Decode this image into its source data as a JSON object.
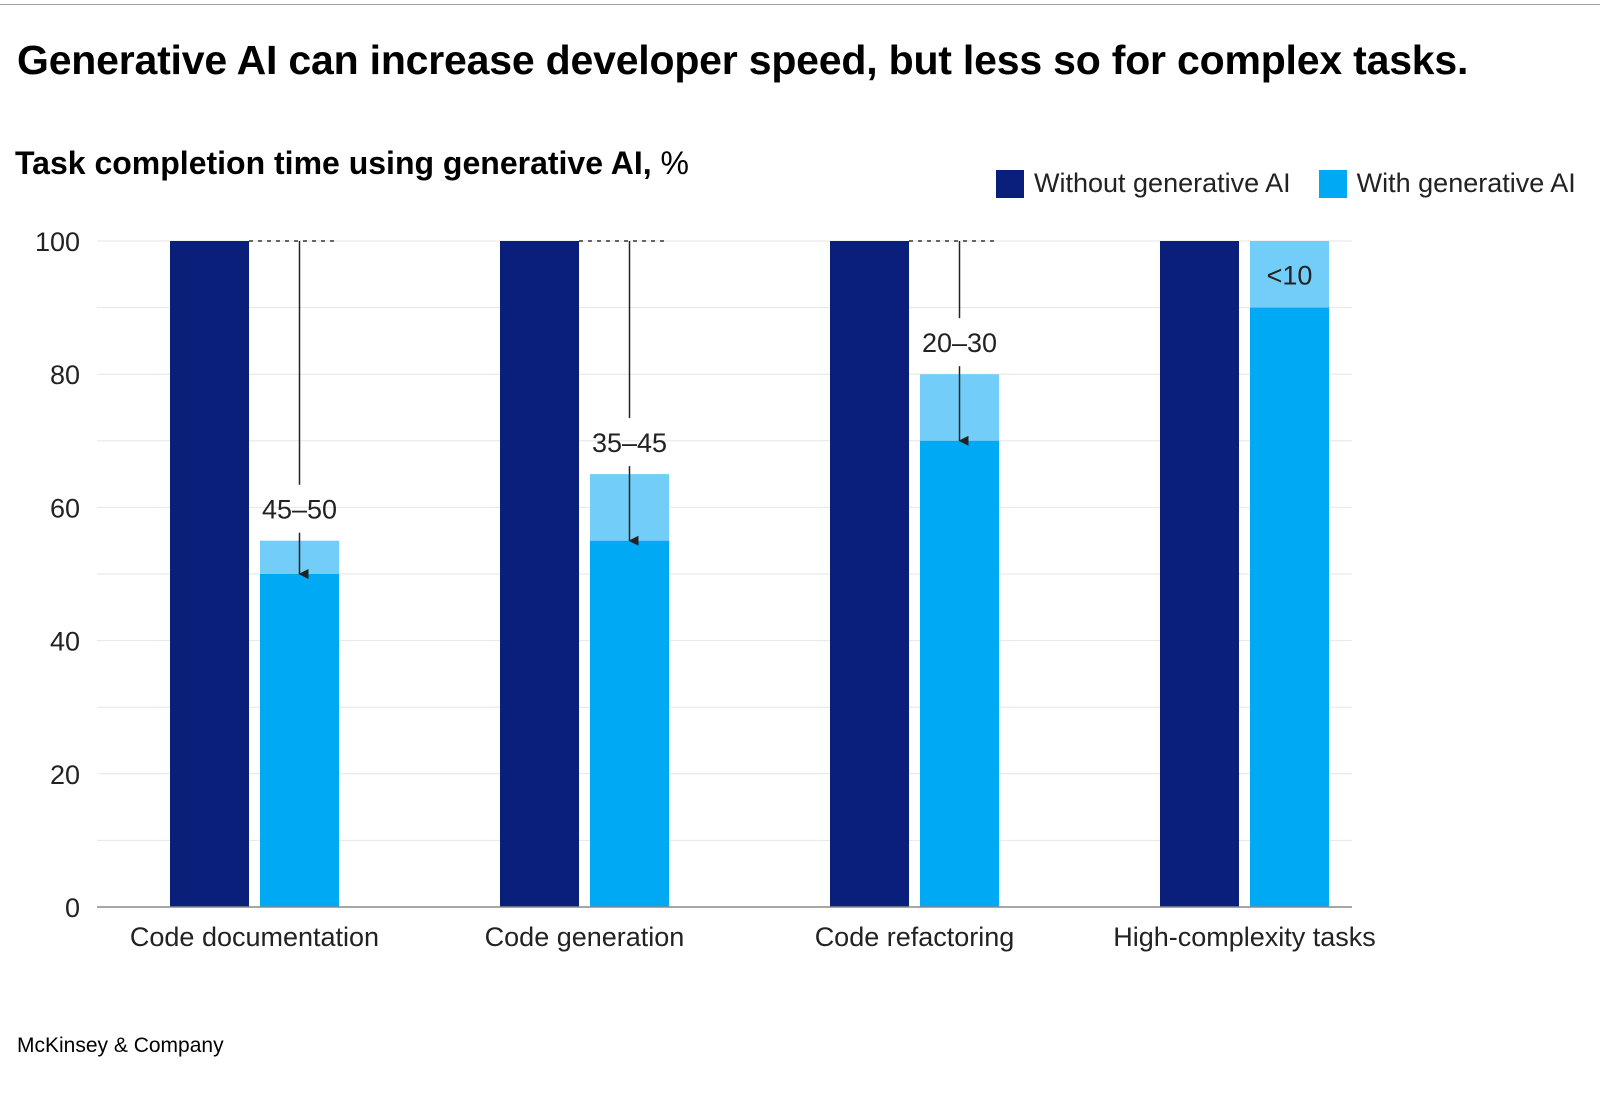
{
  "header": {
    "headline": "Generative AI can increase developer speed, but less so for complex tasks.",
    "subtitle_main": "Task completion time using generative AI,",
    "subtitle_unit": "%"
  },
  "legend": [
    {
      "label": "Without generative AI",
      "color": "#0a1f7a"
    },
    {
      "label": "With generative AI",
      "color": "#00a9f4"
    }
  ],
  "colors": {
    "without": "#0a1f7a",
    "with": "#00a9f4",
    "savings_band": "#72cdf8",
    "gridline": "#e6e6e6",
    "axis": "#888888",
    "text": "#222222"
  },
  "chart_data": {
    "type": "bar",
    "title": "Task completion time using generative AI, %",
    "xlabel": "",
    "ylabel": "",
    "ylim": [
      0,
      100
    ],
    "yticks": [
      0,
      20,
      40,
      60,
      80,
      100
    ],
    "grid": true,
    "legend_position": "top-right",
    "categories": [
      "Code documentation",
      "Code generation",
      "Code refactoring",
      "High-complexity tasks"
    ],
    "series": [
      {
        "name": "Without generative AI",
        "values": [
          100,
          100,
          100,
          100
        ]
      },
      {
        "name": "With generative AI",
        "values": [
          50,
          55,
          70,
          90
        ],
        "range_top": [
          55,
          65,
          80,
          100
        ]
      }
    ],
    "annotations": [
      {
        "category": "Code documentation",
        "text": "45–50",
        "style": "arrow"
      },
      {
        "category": "Code generation",
        "text": "35–45",
        "style": "arrow"
      },
      {
        "category": "Code refactoring",
        "text": "20–30",
        "style": "arrow"
      },
      {
        "category": "High-complexity tasks",
        "text": "<10",
        "style": "inside"
      }
    ]
  },
  "footer": {
    "source": "McKinsey & Company"
  }
}
